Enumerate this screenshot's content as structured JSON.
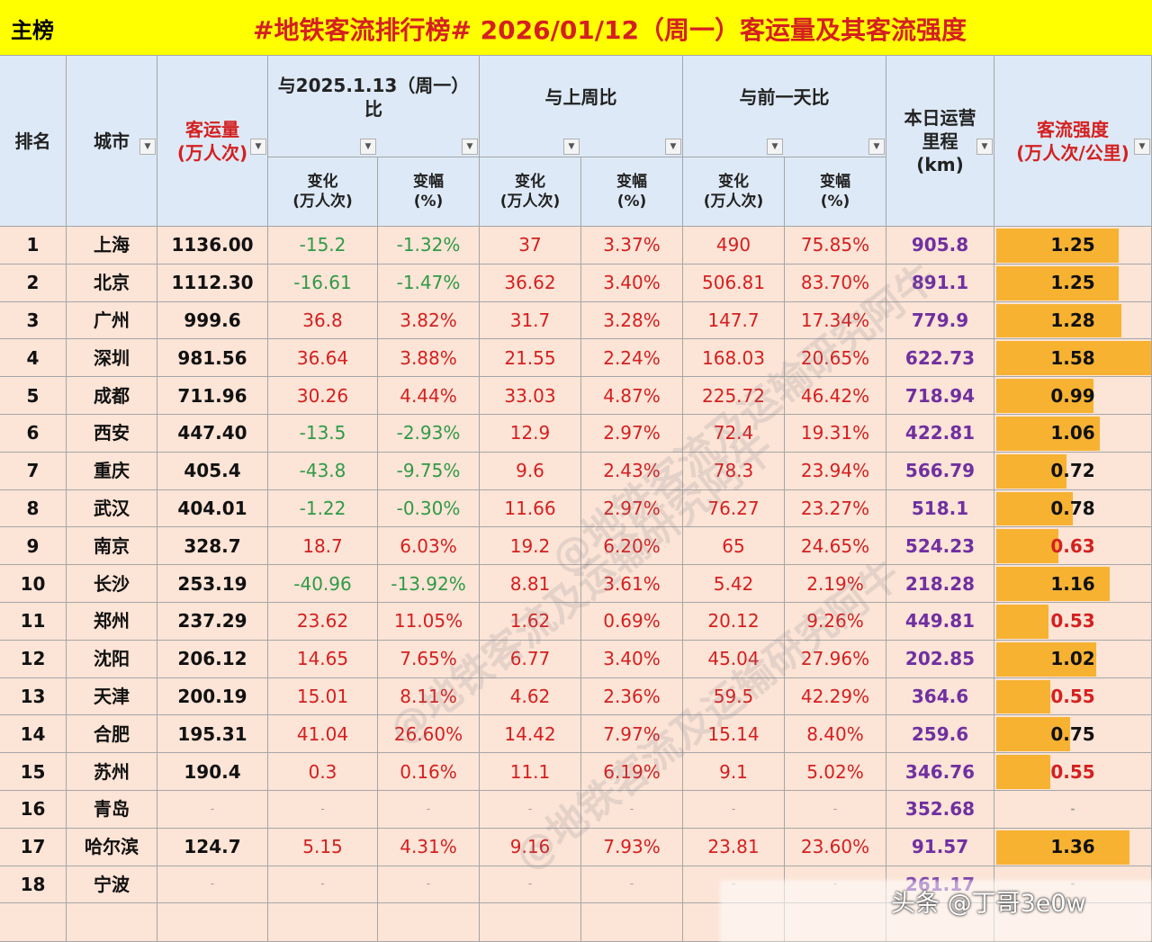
{
  "title_bar": {
    "tab": "主榜",
    "title": "#地铁客流排行榜# 2026/01/12（周一）客运量及其客流强度"
  },
  "header": {
    "rank": "排名",
    "city": "城市",
    "volume": "客运量\n(万人次)",
    "groups": [
      {
        "label": "与2025.1.13（周一）比",
        "change": "变化\n(万人次)",
        "pct": "变幅\n(%)"
      },
      {
        "label": "与上周比",
        "change": "变化\n(万人次)",
        "pct": "变幅\n(%)"
      },
      {
        "label": "与前一天比",
        "change": "变化\n(万人次)",
        "pct": "变幅\n(%)"
      }
    ],
    "mileage": "本日运营\n里程\n(km)",
    "intensity": "客流强度\n(万人次/公里)"
  },
  "rows": [
    [
      "1",
      "上海",
      "1136.00",
      "-15.2",
      "-1.32%",
      "37",
      "3.37%",
      "490",
      "75.85%",
      "905.8",
      "1.25"
    ],
    [
      "2",
      "北京",
      "1112.30",
      "-16.61",
      "-1.47%",
      "36.62",
      "3.40%",
      "506.81",
      "83.70%",
      "891.1",
      "1.25"
    ],
    [
      "3",
      "广州",
      "999.6",
      "36.8",
      "3.82%",
      "31.7",
      "3.28%",
      "147.7",
      "17.34%",
      "779.9",
      "1.28"
    ],
    [
      "4",
      "深圳",
      "981.56",
      "36.64",
      "3.88%",
      "21.55",
      "2.24%",
      "168.03",
      "20.65%",
      "622.73",
      "1.58"
    ],
    [
      "5",
      "成都",
      "711.96",
      "30.26",
      "4.44%",
      "33.03",
      "4.87%",
      "225.72",
      "46.42%",
      "718.94",
      "0.99"
    ],
    [
      "6",
      "西安",
      "447.40",
      "-13.5",
      "-2.93%",
      "12.9",
      "2.97%",
      "72.4",
      "19.31%",
      "422.81",
      "1.06"
    ],
    [
      "7",
      "重庆",
      "405.4",
      "-43.8",
      "-9.75%",
      "9.6",
      "2.43%",
      "78.3",
      "23.94%",
      "566.79",
      "0.72"
    ],
    [
      "8",
      "武汉",
      "404.01",
      "-1.22",
      "-0.30%",
      "11.66",
      "2.97%",
      "76.27",
      "23.27%",
      "518.1",
      "0.78"
    ],
    [
      "9",
      "南京",
      "328.7",
      "18.7",
      "6.03%",
      "19.2",
      "6.20%",
      "65",
      "24.65%",
      "524.23",
      "0.63"
    ],
    [
      "10",
      "长沙",
      "253.19",
      "-40.96",
      "-13.92%",
      "8.81",
      "3.61%",
      "5.42",
      "2.19%",
      "218.28",
      "1.16"
    ],
    [
      "11",
      "郑州",
      "237.29",
      "23.62",
      "11.05%",
      "1.62",
      "0.69%",
      "20.12",
      "9.26%",
      "449.81",
      "0.53"
    ],
    [
      "12",
      "沈阳",
      "206.12",
      "14.65",
      "7.65%",
      "6.77",
      "3.40%",
      "45.04",
      "27.96%",
      "202.85",
      "1.02"
    ],
    [
      "13",
      "天津",
      "200.19",
      "15.01",
      "8.11%",
      "4.62",
      "2.36%",
      "59.5",
      "42.29%",
      "364.6",
      "0.55"
    ],
    [
      "14",
      "合肥",
      "195.31",
      "41.04",
      "26.60%",
      "14.42",
      "7.97%",
      "15.14",
      "8.40%",
      "259.6",
      "0.75"
    ],
    [
      "15",
      "苏州",
      "190.4",
      "0.3",
      "0.16%",
      "11.1",
      "6.19%",
      "9.1",
      "5.02%",
      "346.76",
      "0.55"
    ],
    [
      "16",
      "青岛",
      "-",
      "-",
      "-",
      "-",
      "-",
      "-",
      "-",
      "352.68",
      "-"
    ],
    [
      "17",
      "哈尔滨",
      "124.7",
      "5.15",
      "4.31%",
      "9.16",
      "7.93%",
      "23.81",
      "23.60%",
      "91.57",
      "1.36"
    ],
    [
      "18",
      "宁波",
      "-",
      "-",
      "-",
      "-",
      "-",
      "-",
      "-",
      "261.17",
      "-"
    ]
  ],
  "watermarks": [
    "@地铁客流及运输研究阿牛",
    "头条 @丁哥3e0w"
  ]
}
